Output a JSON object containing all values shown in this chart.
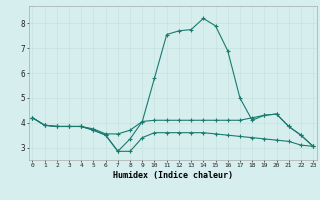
{
  "xlabel": "Humidex (Indice chaleur)",
  "x_values": [
    0,
    1,
    2,
    3,
    4,
    5,
    6,
    7,
    8,
    9,
    10,
    11,
    12,
    13,
    14,
    15,
    16,
    17,
    18,
    19,
    20,
    21,
    22,
    23
  ],
  "line1_y": [
    4.2,
    3.9,
    3.85,
    3.85,
    3.85,
    3.75,
    3.55,
    3.55,
    3.7,
    4.05,
    4.1,
    4.1,
    4.1,
    4.1,
    4.1,
    4.1,
    4.1,
    4.1,
    4.2,
    4.3,
    4.35,
    3.85,
    3.5,
    3.05
  ],
  "line2_y": [
    4.2,
    3.9,
    3.85,
    3.85,
    3.85,
    3.7,
    3.5,
    2.85,
    2.85,
    3.4,
    3.6,
    3.6,
    3.6,
    3.6,
    3.6,
    3.55,
    3.5,
    3.45,
    3.4,
    3.35,
    3.3,
    3.25,
    3.1,
    3.05
  ],
  "line3_y": [
    4.2,
    3.9,
    3.85,
    3.85,
    3.85,
    3.7,
    3.5,
    2.85,
    3.35,
    4.05,
    5.8,
    7.55,
    7.7,
    7.75,
    8.2,
    7.9,
    6.9,
    5.0,
    4.1,
    4.3,
    4.35,
    3.85,
    3.5,
    3.05
  ],
  "line_color": "#1a7a6e",
  "bg_color": "#d6eeed",
  "grid_color_major": "#c8e4e1",
  "grid_color_minor": "#daf0ed",
  "ylim": [
    2.5,
    8.7
  ],
  "yticks": [
    3,
    4,
    5,
    6,
    7,
    8
  ],
  "xlim": [
    -0.3,
    23.3
  ],
  "xticks": [
    0,
    1,
    2,
    3,
    4,
    5,
    6,
    7,
    8,
    9,
    10,
    11,
    12,
    13,
    14,
    15,
    16,
    17,
    18,
    19,
    20,
    21,
    22,
    23
  ]
}
